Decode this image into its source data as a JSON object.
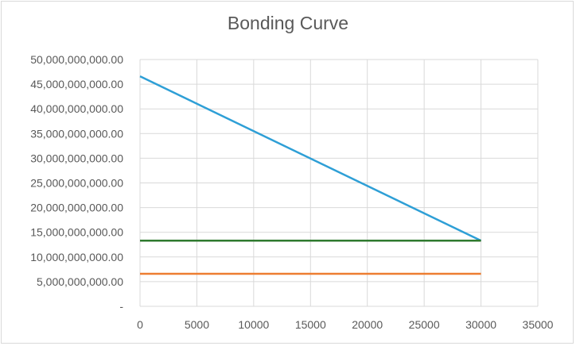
{
  "chart_data": {
    "type": "line",
    "title": "Bonding Curve",
    "xlabel": "",
    "ylabel": "",
    "xlim": [
      0,
      35000
    ],
    "ylim": [
      0,
      50000000000
    ],
    "x_ticks": [
      "0",
      "5000",
      "10000",
      "15000",
      "20000",
      "25000",
      "30000",
      "35000"
    ],
    "y_ticks": [
      "-",
      "5,000,000,000.00",
      "10,000,000,000.00",
      "15,000,000,000.00",
      "20,000,000,000.00",
      "25,000,000,000.00",
      "30,000,000,000.00",
      "35,000,000,000.00",
      "40,000,000,000.00",
      "45,000,000,000.00",
      "50,000,000,000.00"
    ],
    "grid": true,
    "legend": "none",
    "series": [
      {
        "color": "#2e9fd6",
        "x": [
          0,
          30000
        ],
        "y": [
          46600000000,
          13300000000
        ]
      },
      {
        "color": "#2f7a2f",
        "x": [
          0,
          30000
        ],
        "y": [
          13300000000,
          13300000000
        ]
      },
      {
        "color": "#ed7d31",
        "x": [
          0,
          30000
        ],
        "y": [
          6600000000,
          6600000000
        ]
      }
    ]
  }
}
